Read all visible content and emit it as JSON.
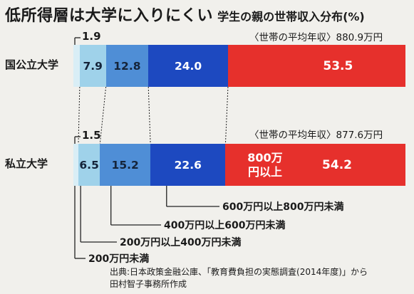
{
  "title": "低所得層は大学に入りにくい",
  "subtitle": "学生の親の世帯収入分布(%)",
  "source_lines": [
    "出典:日本政策金融公庫、「教育費負担の実態調査(2014年度)」から",
    "田村智子事務所作成"
  ],
  "chart_data": {
    "type": "bar",
    "orientation": "horizontal-stacked-100",
    "categories": [
      "国公立大学",
      "私立大学"
    ],
    "averages": [
      "〈世帯の平均年収〉880.9万円",
      "〈世帯の平均年収〉877.6万円"
    ],
    "series": [
      {
        "name": "200万円未満",
        "values": [
          1.9,
          1.5
        ],
        "labels": [
          "1.9",
          "1.5"
        ],
        "color": "#d9eef6"
      },
      {
        "name": "200万円以上400万円未満",
        "values": [
          7.9,
          6.5
        ],
        "labels": [
          "7.9",
          "6.5"
        ],
        "color": "#9fd2ea"
      },
      {
        "name": "400万円以上600万円未満",
        "values": [
          12.8,
          15.2
        ],
        "labels": [
          "12.8",
          "15.2"
        ],
        "color": "#4f8ed6"
      },
      {
        "name": "600万円以上800万円未満",
        "values": [
          24.0,
          22.6
        ],
        "labels": [
          "24.0",
          "22.6"
        ],
        "color": "#1d49c0"
      },
      {
        "name": "800万円以上",
        "values": [
          53.5,
          54.2
        ],
        "labels": [
          "53.5",
          "54.2"
        ],
        "color": "#e6302c"
      }
    ],
    "inner_label_800": "800万円以上"
  }
}
